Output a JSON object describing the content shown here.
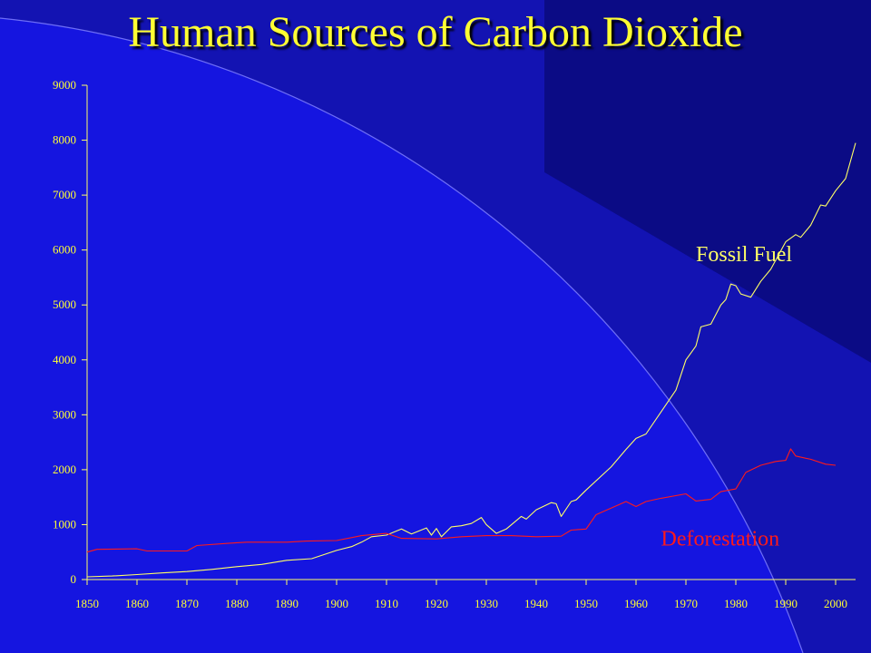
{
  "chart_data": {
    "type": "line",
    "title": "Human Sources of Carbon Dioxide",
    "xlabel": "",
    "ylabel": "",
    "xlim": [
      1850,
      2004
    ],
    "ylim": [
      0,
      9000
    ],
    "x_ticks": [
      1850,
      1860,
      1870,
      1880,
      1890,
      1900,
      1910,
      1920,
      1930,
      1940,
      1950,
      1960,
      1970,
      1980,
      1990,
      2000
    ],
    "y_ticks": [
      0,
      1000,
      2000,
      3000,
      4000,
      5000,
      6000,
      7000,
      8000,
      9000
    ],
    "grid": false,
    "legend": "inline labels",
    "series": [
      {
        "name": "Fossil Fuel",
        "color": "#ffff66",
        "points": [
          [
            1850,
            50
          ],
          [
            1855,
            65
          ],
          [
            1860,
            90
          ],
          [
            1865,
            120
          ],
          [
            1870,
            145
          ],
          [
            1875,
            185
          ],
          [
            1880,
            235
          ],
          [
            1885,
            275
          ],
          [
            1890,
            350
          ],
          [
            1895,
            380
          ],
          [
            1900,
            530
          ],
          [
            1903,
            600
          ],
          [
            1905,
            680
          ],
          [
            1907,
            780
          ],
          [
            1910,
            810
          ],
          [
            1913,
            920
          ],
          [
            1915,
            830
          ],
          [
            1918,
            940
          ],
          [
            1919,
            810
          ],
          [
            1920,
            930
          ],
          [
            1921,
            780
          ],
          [
            1923,
            960
          ],
          [
            1925,
            980
          ],
          [
            1927,
            1020
          ],
          [
            1929,
            1130
          ],
          [
            1930,
            1000
          ],
          [
            1932,
            840
          ],
          [
            1934,
            920
          ],
          [
            1937,
            1150
          ],
          [
            1938,
            1100
          ],
          [
            1940,
            1270
          ],
          [
            1943,
            1400
          ],
          [
            1944,
            1380
          ],
          [
            1945,
            1150
          ],
          [
            1947,
            1420
          ],
          [
            1948,
            1450
          ],
          [
            1950,
            1630
          ],
          [
            1955,
            2050
          ],
          [
            1958,
            2370
          ],
          [
            1960,
            2570
          ],
          [
            1962,
            2650
          ],
          [
            1965,
            3050
          ],
          [
            1968,
            3450
          ],
          [
            1970,
            4000
          ],
          [
            1972,
            4250
          ],
          [
            1973,
            4600
          ],
          [
            1975,
            4650
          ],
          [
            1977,
            5000
          ],
          [
            1978,
            5100
          ],
          [
            1979,
            5380
          ],
          [
            1980,
            5350
          ],
          [
            1981,
            5200
          ],
          [
            1983,
            5140
          ],
          [
            1985,
            5430
          ],
          [
            1987,
            5650
          ],
          [
            1990,
            6150
          ],
          [
            1992,
            6280
          ],
          [
            1993,
            6230
          ],
          [
            1995,
            6450
          ],
          [
            1997,
            6820
          ],
          [
            1998,
            6800
          ],
          [
            2000,
            7080
          ],
          [
            2002,
            7300
          ],
          [
            2004,
            7950
          ]
        ]
      },
      {
        "name": "Deforestation",
        "color": "#ff1a1a",
        "points": [
          [
            1850,
            500
          ],
          [
            1852,
            550
          ],
          [
            1860,
            560
          ],
          [
            1862,
            520
          ],
          [
            1870,
            520
          ],
          [
            1872,
            620
          ],
          [
            1880,
            670
          ],
          [
            1882,
            680
          ],
          [
            1890,
            680
          ],
          [
            1894,
            700
          ],
          [
            1900,
            710
          ],
          [
            1905,
            800
          ],
          [
            1910,
            840
          ],
          [
            1913,
            750
          ],
          [
            1920,
            740
          ],
          [
            1925,
            780
          ],
          [
            1930,
            800
          ],
          [
            1935,
            800
          ],
          [
            1940,
            780
          ],
          [
            1945,
            790
          ],
          [
            1947,
            900
          ],
          [
            1950,
            920
          ],
          [
            1952,
            1180
          ],
          [
            1955,
            1300
          ],
          [
            1958,
            1420
          ],
          [
            1960,
            1330
          ],
          [
            1962,
            1420
          ],
          [
            1965,
            1480
          ],
          [
            1970,
            1560
          ],
          [
            1972,
            1430
          ],
          [
            1975,
            1460
          ],
          [
            1977,
            1600
          ],
          [
            1980,
            1650
          ],
          [
            1982,
            1950
          ],
          [
            1985,
            2080
          ],
          [
            1988,
            2150
          ],
          [
            1990,
            2170
          ],
          [
            1991,
            2380
          ],
          [
            1992,
            2250
          ],
          [
            1995,
            2190
          ],
          [
            1998,
            2100
          ],
          [
            2000,
            2080
          ]
        ]
      }
    ]
  }
}
